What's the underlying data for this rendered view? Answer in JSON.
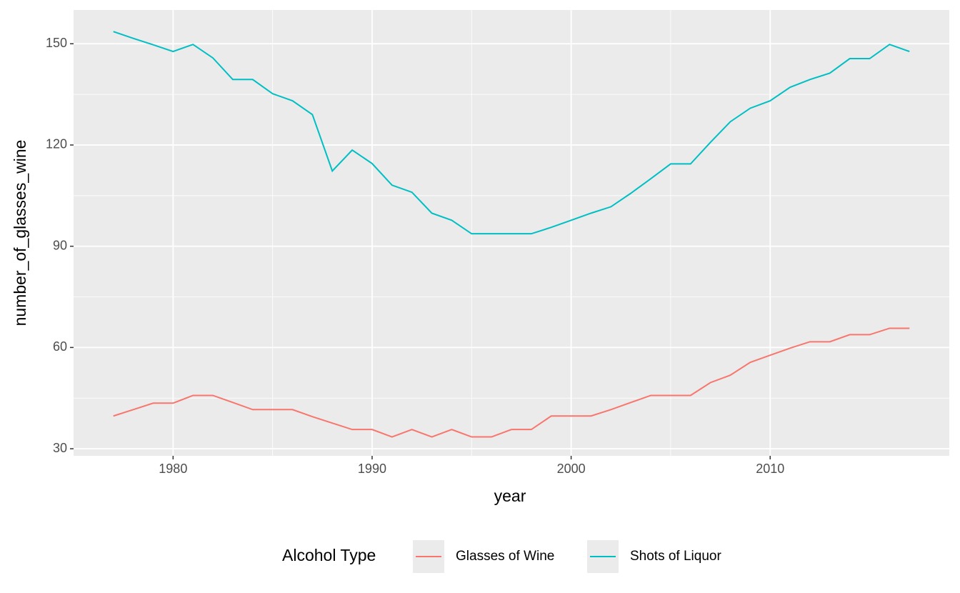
{
  "chart_data": {
    "type": "line",
    "x_label": "year",
    "y_label": "number_of_glasses_wine",
    "x": [
      1977,
      1978,
      1979,
      1980,
      1981,
      1982,
      1983,
      1984,
      1985,
      1986,
      1987,
      1988,
      1989,
      1990,
      1991,
      1992,
      1993,
      1994,
      1995,
      1996,
      1997,
      1998,
      1999,
      2000,
      2001,
      2002,
      2003,
      2004,
      2005,
      2006,
      2007,
      2008,
      2009,
      2010,
      2011,
      2012,
      2013,
      2014,
      2015,
      2016,
      2017
    ],
    "series": [
      {
        "name": "Glasses of Wine",
        "color": "#F8766D",
        "values": [
          39.7,
          41.6,
          43.5,
          43.5,
          45.8,
          45.8,
          43.7,
          41.6,
          41.6,
          41.6,
          39.5,
          37.6,
          35.7,
          35.7,
          33.5,
          35.7,
          33.5,
          35.7,
          33.5,
          33.5,
          35.7,
          35.7,
          39.7,
          39.7,
          39.7,
          41.6,
          43.7,
          45.8,
          45.8,
          45.8,
          49.6,
          51.8,
          55.6,
          57.7,
          59.8,
          61.7,
          61.7,
          63.8,
          63.8,
          65.7,
          65.7
        ]
      },
      {
        "name": "Shots of Liquor",
        "color": "#00BFC4",
        "values": [
          153.6,
          151.6,
          149.7,
          147.7,
          149.8,
          145.8,
          139.4,
          139.4,
          135.2,
          133.1,
          129.0,
          112.3,
          118.5,
          114.5,
          108.1,
          106.0,
          99.8,
          97.7,
          93.7,
          93.7,
          93.7,
          93.7,
          95.6,
          97.7,
          99.8,
          101.7,
          105.7,
          110.0,
          114.4,
          114.4,
          120.8,
          126.9,
          130.9,
          133.1,
          137.1,
          139.4,
          141.3,
          145.6,
          145.6,
          149.8,
          147.7
        ]
      }
    ],
    "xlim": [
      1975,
      2019
    ],
    "xticks": [
      1980,
      1990,
      2000,
      2010
    ],
    "ylim": [
      27.9,
      160
    ],
    "yticks": [
      30,
      60,
      90,
      120,
      150
    ],
    "grid": true,
    "legend_title": "Alcohol Type",
    "legend_position": "bottom"
  }
}
